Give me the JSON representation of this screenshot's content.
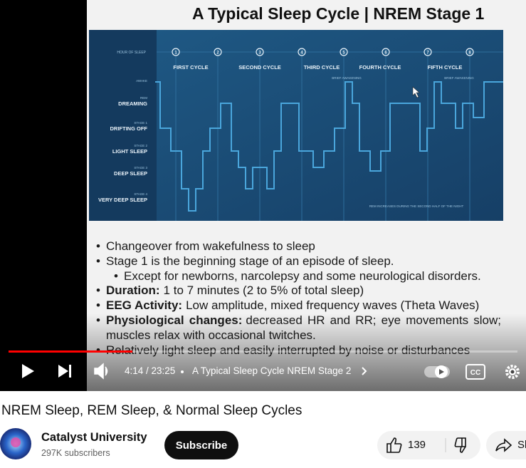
{
  "slide": {
    "title": "A Typical Sleep Cycle | NREM Stage 1",
    "diagram": {
      "hour_label": "HOUR OF SLEEP",
      "hours": [
        "1",
        "2",
        "3",
        "4",
        "5",
        "6",
        "7",
        "8"
      ],
      "cycles": [
        "FIRST CYCLE",
        "SECOND CYCLE",
        "THIRD CYCLE",
        "FOURTH CYCLE",
        "FIFTH CYCLE"
      ],
      "awakening": [
        "BRIEF AWAKENING",
        "BRIEF AWAKENING"
      ],
      "levels": [
        {
          "small": "AWAKE",
          "big": ""
        },
        {
          "small": "REM",
          "big": "DREAMING"
        },
        {
          "small": "STAGE 1",
          "big": "DRIFTING OFF"
        },
        {
          "small": "STAGE 2",
          "big": "LIGHT SLEEP"
        },
        {
          "small": "STAGE 3",
          "big": "DEEP SLEEP"
        },
        {
          "small": "STAGE 4",
          "big": "VERY DEEP SLEEP"
        }
      ],
      "note": "REM INCREASES DURING THE SECOND HALF OF THE NIGHT"
    },
    "bullets": [
      {
        "text": "Changeover from wakefulness to sleep"
      },
      {
        "text": "Stage 1 is the beginning stage of an episode of sleep."
      },
      {
        "text": "Except for newborns, narcolepsy and some neurological disorders.",
        "sub": true
      },
      {
        "label": "Duration:",
        "text": "1 to 7 minutes (2 to 5% of total sleep)"
      },
      {
        "label": "EEG Activity:",
        "text": "Low amplitude, mixed frequency waves (Theta Waves)"
      },
      {
        "label": "Physiological changes:",
        "text": "decreased HR and RR; eye movements slow; muscles relax with occasional twitches."
      },
      {
        "text": "Relatively light sleep and easily interrupted by noise or disturbances"
      }
    ]
  },
  "controls": {
    "time": "4:14 / 23:25",
    "chapter": "A Typical Sleep Cycle NREM Stage 2"
  },
  "video_title": "NREM Sleep, REM Sleep, & Normal Sleep Cycles",
  "channel": {
    "name": "Catalyst University",
    "subscribers": "297K subscribers"
  },
  "actions": {
    "subscribe": "Subscribe",
    "likes": 139,
    "share": "Share"
  }
}
